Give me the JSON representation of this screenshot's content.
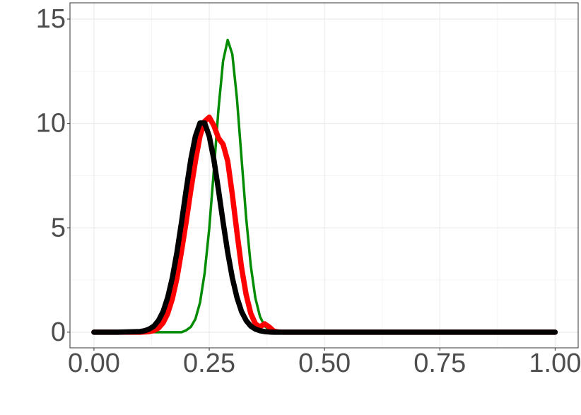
{
  "chart_data": {
    "type": "line",
    "x": [
      0,
      0.05,
      0.1,
      0.11,
      0.12,
      0.13,
      0.14,
      0.15,
      0.16,
      0.17,
      0.18,
      0.19,
      0.2,
      0.21,
      0.22,
      0.23,
      0.24,
      0.25,
      0.26,
      0.27,
      0.28,
      0.29,
      0.3,
      0.31,
      0.32,
      0.33,
      0.34,
      0.35,
      0.36,
      0.37,
      0.38,
      0.39,
      0.4,
      0.41,
      0.42,
      0.45,
      0.5,
      0.6,
      0.7,
      0.8,
      0.9,
      1.0
    ],
    "series": [
      {
        "color": "#008b00",
        "line_width": 3.5,
        "values": [
          0,
          0,
          0,
          0,
          0,
          0,
          0,
          0,
          0,
          0,
          0,
          0,
          0.09,
          0.25,
          0.63,
          1.42,
          2.83,
          4.97,
          7.76,
          10.68,
          12.99,
          14.0,
          13.32,
          11.21,
          8.34,
          5.49,
          3.19,
          1.64,
          0.75,
          0.3,
          0.11,
          0.03,
          0.01,
          0,
          0,
          0,
          0,
          0,
          0,
          0,
          0,
          0
        ]
      },
      {
        "color": "#ff0000",
        "line_width": 7.5,
        "values": [
          0,
          0,
          0,
          0.01,
          0.03,
          0.08,
          0.2,
          0.45,
          0.9,
          1.6,
          2.6,
          3.9,
          5.3,
          6.8,
          8.2,
          9.4,
          10.1,
          10.3,
          9.9,
          9.3,
          9.0,
          8.2,
          6.6,
          4.8,
          3.1,
          1.8,
          0.9,
          0.4,
          0.25,
          0.4,
          0.25,
          0.05,
          0.01,
          0,
          0,
          0,
          0,
          0,
          0,
          0,
          0,
          0
        ]
      },
      {
        "color": "#000000",
        "line_width": 7.5,
        "values": [
          0,
          0,
          0.03,
          0.07,
          0.15,
          0.29,
          0.56,
          0.99,
          1.67,
          2.61,
          3.83,
          5.28,
          6.82,
          8.27,
          9.39,
          10.02,
          10.02,
          9.39,
          8.27,
          6.82,
          5.28,
          3.83,
          2.61,
          1.67,
          0.99,
          0.56,
          0.29,
          0.15,
          0.07,
          0.03,
          0.01,
          0,
          0,
          0,
          0,
          0,
          0,
          0,
          0,
          0,
          0,
          0
        ]
      }
    ],
    "xlim": [
      -0.052,
      1.05
    ],
    "ylim": [
      -0.75,
      15.78
    ],
    "xticks": [
      {
        "value": 0,
        "label": "0.00"
      },
      {
        "value": 0.25,
        "label": "0.25"
      },
      {
        "value": 0.5,
        "label": "0.50"
      },
      {
        "value": 0.75,
        "label": "0.75"
      },
      {
        "value": 1,
        "label": "1.00"
      }
    ],
    "yticks": [
      0,
      5,
      10,
      15
    ],
    "x_minor_ticks": [
      0.125,
      0.375,
      0.625,
      0.875
    ],
    "y_minor_ticks": [
      2.5,
      7.5,
      12.5
    ],
    "grid": true
  }
}
